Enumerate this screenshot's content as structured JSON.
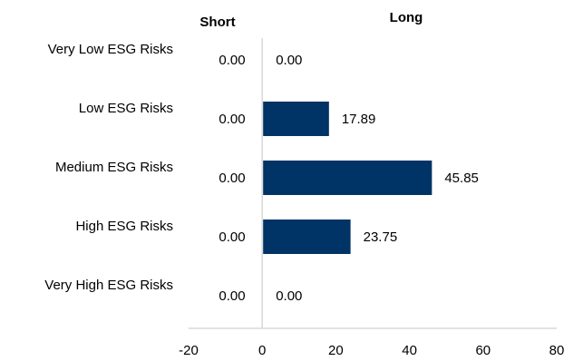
{
  "chart_data": {
    "type": "bar",
    "orientation": "horizontal",
    "column_headers": {
      "short": "Short",
      "long": "Long"
    },
    "categories": [
      "Very Low ESG Risks",
      "Low ESG Risks",
      "Medium ESG Risks",
      "High ESG Risks",
      "Very High ESG Risks"
    ],
    "series": [
      {
        "name": "Short",
        "values": [
          0.0,
          0.0,
          0.0,
          0.0,
          0.0
        ],
        "labels": [
          "0.00",
          "0.00",
          "0.00",
          "0.00",
          "0.00"
        ]
      },
      {
        "name": "Long",
        "values": [
          0.0,
          17.89,
          45.85,
          23.75,
          0.0
        ],
        "labels": [
          "0.00",
          "17.89",
          "45.85",
          "23.75",
          "0.00"
        ]
      }
    ],
    "xlim": [
      -20,
      80
    ],
    "xticks": [
      -20,
      0,
      20,
      40,
      60,
      80
    ],
    "xtick_labels": [
      "-20",
      "0",
      "20",
      "40",
      "60",
      "80"
    ],
    "bar_color": "#003366",
    "axis_color": "#d9d9d9",
    "grid": false,
    "legend": "none"
  }
}
